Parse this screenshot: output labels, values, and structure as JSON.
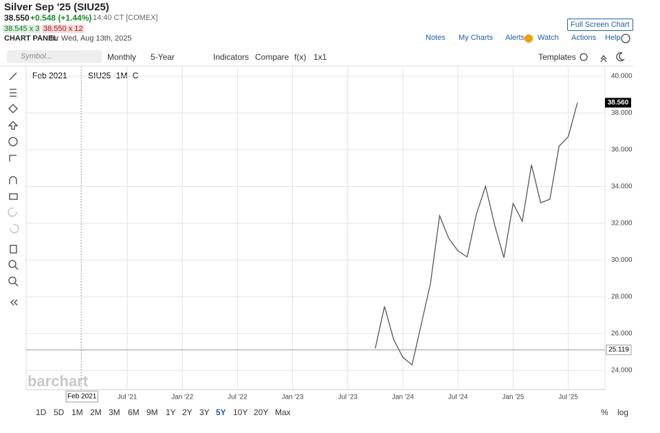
{
  "header": {
    "title": "Silver Sep '25 (SIU25)",
    "last": "38.550",
    "change": "+0.548 (+1.44%)",
    "time": "14:40 CT [COMEX]",
    "bid": "38.545 x 3",
    "ask": "38.550 x 12",
    "panel": "CHART PANEL",
    "panel_date": "for Wed, Aug 13th, 2025",
    "full_screen": "Full Screen Chart"
  },
  "menu": [
    "Notes",
    "My Charts",
    "Alerts",
    "Watch",
    "Actions",
    "Help"
  ],
  "toolbar": {
    "symbol": "Symbol...",
    "items": [
      "Monthly",
      "5-Year",
      "Indicators",
      "Compare",
      "f(x)",
      "1x1"
    ],
    "templates": "Templates"
  },
  "chart": {
    "type": "line",
    "legend": "SIU25 ·1M· C",
    "watermark": "barchart",
    "x": [
      "2023-10",
      "2023-11",
      "2023-12",
      "2024-01",
      "2024-02",
      "2024-03",
      "2024-04",
      "2024-05",
      "2024-06",
      "2024-07",
      "2024-08",
      "2024-09",
      "2024-10",
      "2024-11",
      "2024-12",
      "2025-01",
      "2025-02",
      "2025-03",
      "2025-04",
      "2025-05",
      "2025-06",
      "2025-07",
      "2025-08"
    ],
    "series": [
      {
        "name": "SIU25",
        "color": "#555555",
        "values": [
          25.2,
          27.48,
          25.68,
          24.71,
          24.3,
          26.5,
          28.71,
          32.41,
          31.18,
          30.5,
          30.17,
          32.49,
          34.02,
          31.89,
          30.13,
          33.08,
          32.11,
          35.18,
          33.12,
          33.31,
          36.19,
          36.71,
          38.56
        ]
      }
    ],
    "xlim": [
      "2020-08",
      "2025-11"
    ],
    "xticks": [
      {
        "value": "2021-07",
        "label": "Jul '21"
      },
      {
        "value": "2022-01",
        "label": "Jan '22"
      },
      {
        "value": "2022-07",
        "label": "Jul '22"
      },
      {
        "value": "2023-01",
        "label": "Jan '23"
      },
      {
        "value": "2023-07",
        "label": "Jul '23"
      },
      {
        "value": "2024-01",
        "label": "Jan '24"
      },
      {
        "value": "2024-07",
        "label": "Jul '24"
      },
      {
        "value": "2025-01",
        "label": "Jan '25"
      },
      {
        "value": "2025-07",
        "label": "Jul '25"
      }
    ],
    "ylim": [
      22.95,
      40.52
    ],
    "yticks": [
      {
        "value": 24,
        "label": "24.000"
      },
      {
        "value": 26,
        "label": "26.000"
      },
      {
        "value": 28,
        "label": "28.000"
      },
      {
        "value": 30,
        "label": "30.000"
      },
      {
        "value": 32,
        "label": "32.000"
      },
      {
        "value": 34,
        "label": "34.000"
      },
      {
        "value": 36,
        "label": "36.000"
      },
      {
        "value": 38,
        "label": "38.000"
      },
      {
        "value": 40,
        "label": "40.000"
      }
    ],
    "grid": true,
    "crosshair": {
      "x": "2021-02",
      "label": "Feb 2021"
    },
    "reference_line": {
      "value": 25.119,
      "label": "25.119"
    },
    "last_marker": {
      "value": 38.56,
      "label": "38.560"
    }
  },
  "ranges": [
    "1D",
    "5D",
    "1M",
    "2M",
    "3M",
    "6M",
    "9M",
    "1Y",
    "2Y",
    "3Y",
    "5Y",
    "10Y",
    "20Y",
    "Max"
  ],
  "active_range": "5Y",
  "scale_options": [
    "%",
    "log"
  ]
}
